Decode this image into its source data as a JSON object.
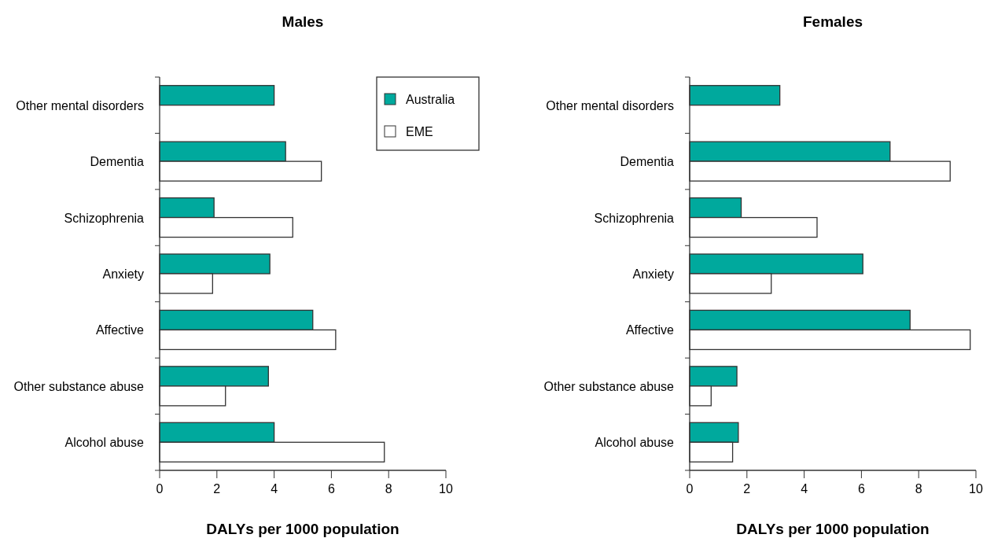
{
  "chart_data": [
    {
      "type": "bar",
      "orientation": "horizontal",
      "title": "Males",
      "xlabel": "DALYs per 1000 population",
      "categories": [
        "Other mental disorders",
        "Dementia",
        "Schizophrenia",
        "Anxiety",
        "Affective",
        "Other substance abuse",
        "Alcohol abuse"
      ],
      "series": [
        {
          "name": "Australia",
          "color": "#00a99d",
          "values": [
            4.0,
            4.4,
            1.9,
            3.85,
            5.35,
            3.8,
            4.0
          ]
        },
        {
          "name": "EME",
          "color": "#ffffff",
          "values": [
            null,
            5.65,
            4.65,
            1.85,
            6.15,
            2.3,
            7.85
          ]
        }
      ],
      "xlim": [
        0,
        10
      ],
      "xticks": [
        0,
        2,
        4,
        6,
        8,
        10
      ],
      "legend": "top right"
    },
    {
      "type": "bar",
      "orientation": "horizontal",
      "title": "Females",
      "xlabel": "DALYs per 1000 population",
      "categories": [
        "Other mental disorders",
        "Dementia",
        "Schizophrenia",
        "Anxiety",
        "Affective",
        "Other substance abuse",
        "Alcohol abuse"
      ],
      "series": [
        {
          "color": "#00a99d",
          "values": [
            3.15,
            7.0,
            1.8,
            6.05,
            7.7,
            1.65,
            1.7
          ]
        },
        {
          "color": "#ffffff",
          "values": [
            null,
            9.1,
            4.45,
            2.85,
            9.8,
            0.75,
            1.5
          ]
        }
      ],
      "xlim": [
        0,
        10
      ],
      "xticks": [
        0,
        2,
        4,
        6,
        8,
        10
      ]
    }
  ]
}
